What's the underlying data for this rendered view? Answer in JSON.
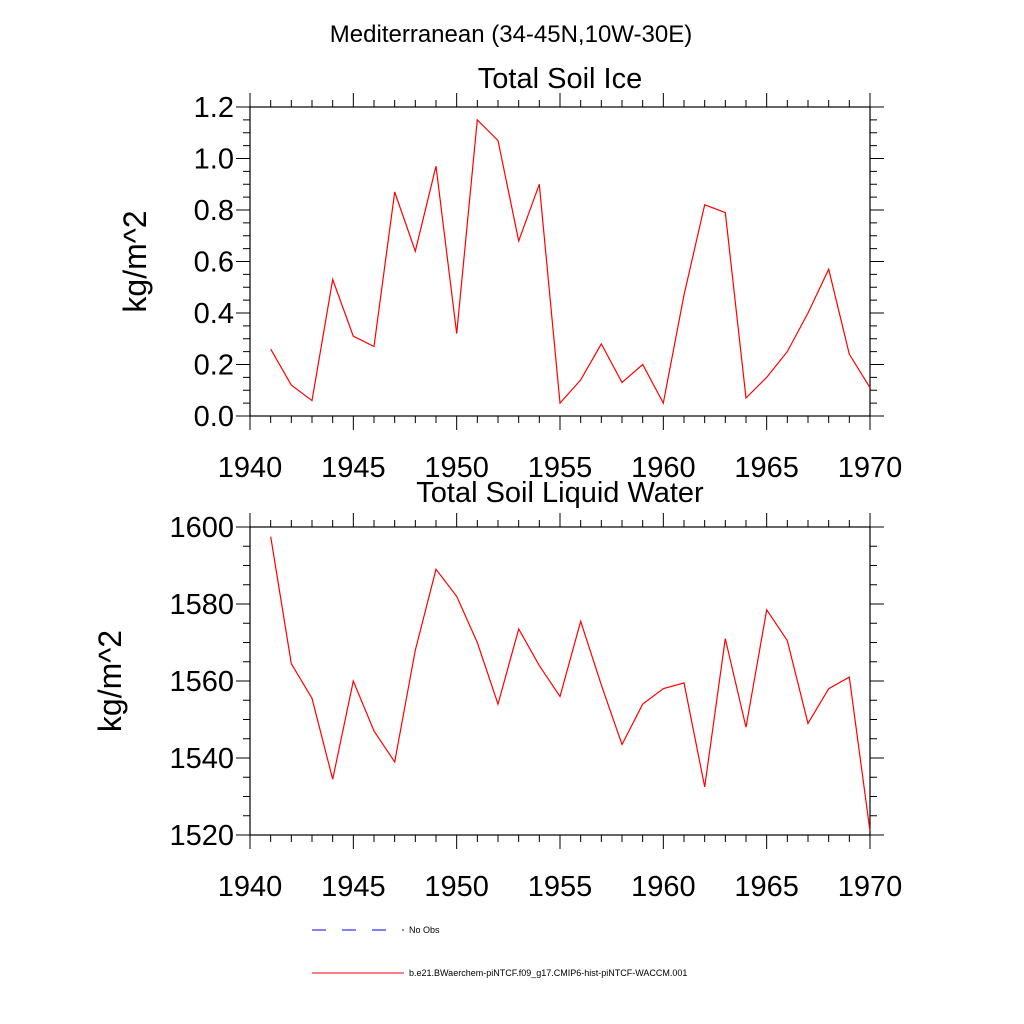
{
  "main_title": "Mediterranean (34-45N,10W-30E)",
  "chart_data": [
    {
      "type": "line",
      "title": "Total Soil Ice",
      "xlabel": "",
      "ylabel": "kg/m^2",
      "xlim": [
        1940,
        1970
      ],
      "ylim": [
        0.0,
        1.2
      ],
      "xticks": [
        "1940",
        "1945",
        "1950",
        "1955",
        "1960",
        "1965",
        "1970"
      ],
      "yticks": [
        "0.0",
        "0.2",
        "0.4",
        "0.6",
        "0.8",
        "1.0",
        "1.2"
      ],
      "x": [
        1941,
        1942,
        1943,
        1944,
        1945,
        1946,
        1947,
        1948,
        1949,
        1950,
        1951,
        1952,
        1953,
        1954,
        1955,
        1956,
        1957,
        1958,
        1959,
        1960,
        1961,
        1962,
        1963,
        1964,
        1965,
        1966,
        1967,
        1968,
        1969,
        1970
      ],
      "series": [
        {
          "name": "b.e21.BWaerchem-piNTCF.f09_g17.CMIP6-hist-piNTCF-WACCM.001",
          "color": "#ff0000",
          "values": [
            0.26,
            0.12,
            0.06,
            0.53,
            0.31,
            0.27,
            0.87,
            0.64,
            0.97,
            0.32,
            1.15,
            1.07,
            0.68,
            0.9,
            0.05,
            0.14,
            0.28,
            0.13,
            0.2,
            0.05,
            0.47,
            0.82,
            0.79,
            0.07,
            0.15,
            0.25,
            0.4,
            0.57,
            0.24,
            0.11
          ]
        }
      ]
    },
    {
      "type": "line",
      "title": "Total Soil Liquid Water",
      "xlabel": "",
      "ylabel": "kg/m^2",
      "xlim": [
        1940,
        1970
      ],
      "ylim": [
        1520,
        1600
      ],
      "xticks": [
        "1940",
        "1945",
        "1950",
        "1955",
        "1960",
        "1965",
        "1970"
      ],
      "yticks": [
        "1520",
        "1540",
        "1560",
        "1580",
        "1600"
      ],
      "x": [
        1941,
        1942,
        1943,
        1944,
        1945,
        1946,
        1947,
        1948,
        1949,
        1950,
        1951,
        1952,
        1953,
        1954,
        1955,
        1956,
        1957,
        1958,
        1959,
        1960,
        1961,
        1962,
        1963,
        1964,
        1965,
        1966,
        1967,
        1968,
        1969,
        1970
      ],
      "series": [
        {
          "name": "b.e21.BWaerchem-piNTCF.f09_g17.CMIP6-hist-piNTCF-WACCM.001",
          "color": "#ff0000",
          "values": [
            1597.5,
            1564.5,
            1555.5,
            1534.5,
            1560,
            1547,
            1539,
            1568,
            1589,
            1582,
            1570,
            1554,
            1573.5,
            1564,
            1556,
            1575.5,
            1559,
            1543.5,
            1554,
            1558,
            1559.5,
            1532.5,
            1571,
            1548,
            1578.5,
            1570.5,
            1549,
            1558,
            1561,
            1521
          ]
        }
      ]
    }
  ],
  "legend": {
    "items": [
      {
        "label": "No Obs",
        "color": "#0000ff",
        "style": "dashed"
      },
      {
        "label": "b.e21.BWaerchem-piNTCF.f09_g17.CMIP6-hist-piNTCF-WACCM.001",
        "color": "#ff0000",
        "style": "solid"
      }
    ]
  }
}
